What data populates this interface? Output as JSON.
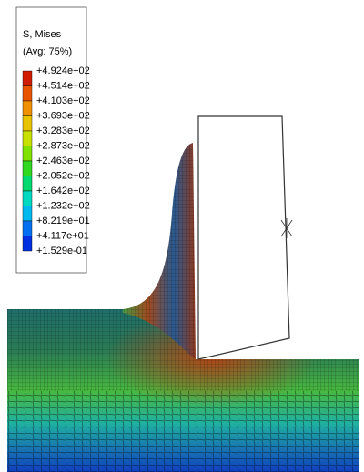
{
  "legend": {
    "title": "S, Mises",
    "subtitle": "(Avg: 75%)",
    "labels": [
      "+4.924e+02",
      "+4.514e+02",
      "+4.103e+02",
      "+3.693e+02",
      "+3.283e+02",
      "+2.873e+02",
      "+2.463e+02",
      "+2.052e+02",
      "+1.642e+02",
      "+1.232e+02",
      "+8.219e+01",
      "+4.117e+01",
      "+1.529e-01"
    ]
  }
}
